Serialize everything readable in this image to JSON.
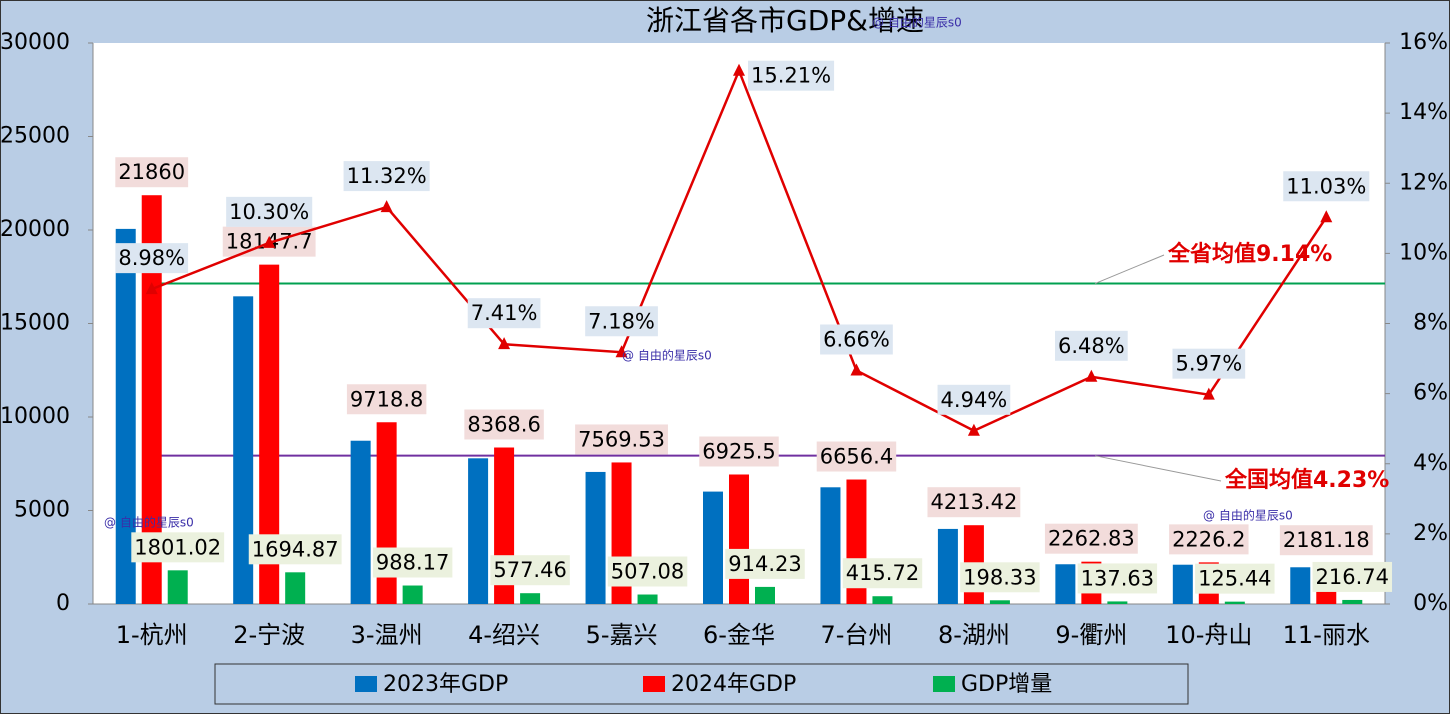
{
  "chart_data": {
    "type": "bar",
    "title": "浙江省各市GDP&增速",
    "categories": [
      "1-杭州",
      "2-宁波",
      "3-温州",
      "4-绍兴",
      "5-嘉兴",
      "6-金华",
      "7-台州",
      "8-湖州",
      "9-衢州",
      "10-舟山",
      "11-丽水"
    ],
    "series": [
      {
        "name": "2023年GDP",
        "type": "bar",
        "color": "#0070c0",
        "values": [
          20059,
          16453,
          8731,
          7791,
          7062,
          6011,
          6241,
          4015,
          2125,
          2101,
          1964
        ]
      },
      {
        "name": "2024年GDP",
        "type": "bar",
        "color": "#ff0000",
        "label_bg": "#f2dcdb",
        "values": [
          21860,
          18147.7,
          9718.8,
          8368.6,
          7569.53,
          6925.5,
          6656.4,
          4213.42,
          2262.83,
          2226.2,
          2181.18
        ]
      },
      {
        "name": "GDP增量",
        "type": "bar",
        "color": "#00b050",
        "label_bg": "#ebf1de",
        "values": [
          1801.02,
          1694.87,
          988.17,
          577.46,
          507.08,
          914.23,
          415.72,
          198.33,
          137.63,
          125.44,
          216.74
        ]
      },
      {
        "type": "line",
        "axis": "y2",
        "color": "#e00000",
        "label_bg": "#dce6f1",
        "values": [
          8.98,
          10.3,
          11.32,
          7.41,
          7.18,
          15.21,
          6.66,
          4.94,
          6.48,
          5.97,
          11.03
        ],
        "value_labels": [
          "8.98%",
          "10.30%",
          "11.32%",
          "7.41%",
          "7.18%",
          "15.21%",
          "6.66%",
          "4.94%",
          "6.48%",
          "5.97%",
          "11.03%"
        ]
      }
    ],
    "ylim": [
      0,
      30000
    ],
    "yticks": [
      0,
      5000,
      10000,
      15000,
      20000,
      25000,
      30000
    ],
    "y2lim": [
      0,
      16
    ],
    "y2ticks": [
      {
        "value": 0,
        "label": "0%"
      },
      {
        "value": 2,
        "label": "2%"
      },
      {
        "value": 4,
        "label": "4%"
      },
      {
        "value": 6,
        "label": "6%"
      },
      {
        "value": 8,
        "label": "8%"
      },
      {
        "value": 10,
        "label": "10%"
      },
      {
        "value": 12,
        "label": "12%"
      },
      {
        "value": 14,
        "label": "14%"
      },
      {
        "value": 16,
        "label": "16%"
      }
    ],
    "reference_lines": [
      {
        "label": "全省均值9.14%",
        "value": 9.14,
        "axis": "y2",
        "color": "#00a050"
      },
      {
        "label": "全国均值4.23%",
        "value": 4.23,
        "axis": "y2",
        "color": "#7030a0"
      }
    ],
    "watermarks": [
      "@ 自由的星辰s0",
      "@ 自由的星辰s0",
      "@ 自由的星辰s0",
      "@ 自由的星辰s0"
    ],
    "legend": "bottom"
  }
}
